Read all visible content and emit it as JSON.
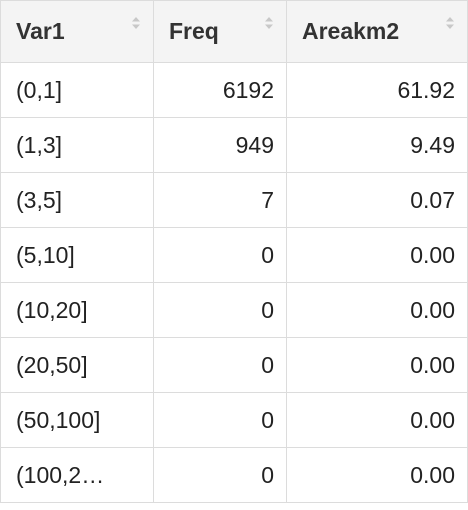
{
  "table": {
    "columns": [
      {
        "label": "Var1"
      },
      {
        "label": "Freq"
      },
      {
        "label": "Areakm2"
      }
    ],
    "rows": [
      {
        "var1": "(0,1]",
        "freq": "6192",
        "area": "61.92"
      },
      {
        "var1": "(1,3]",
        "freq": "949",
        "area": "9.49"
      },
      {
        "var1": "(3,5]",
        "freq": "7",
        "area": "0.07"
      },
      {
        "var1": "(5,10]",
        "freq": "0",
        "area": "0.00"
      },
      {
        "var1": "(10,20]",
        "freq": "0",
        "area": "0.00"
      },
      {
        "var1": "(20,50]",
        "freq": "0",
        "area": "0.00"
      },
      {
        "var1": "(50,100]",
        "freq": "0",
        "area": "0.00"
      },
      {
        "var1": "(100,2…",
        "freq": "0",
        "area": "0.00"
      }
    ]
  },
  "icons": {
    "sort": "sort-arrows-icon"
  }
}
